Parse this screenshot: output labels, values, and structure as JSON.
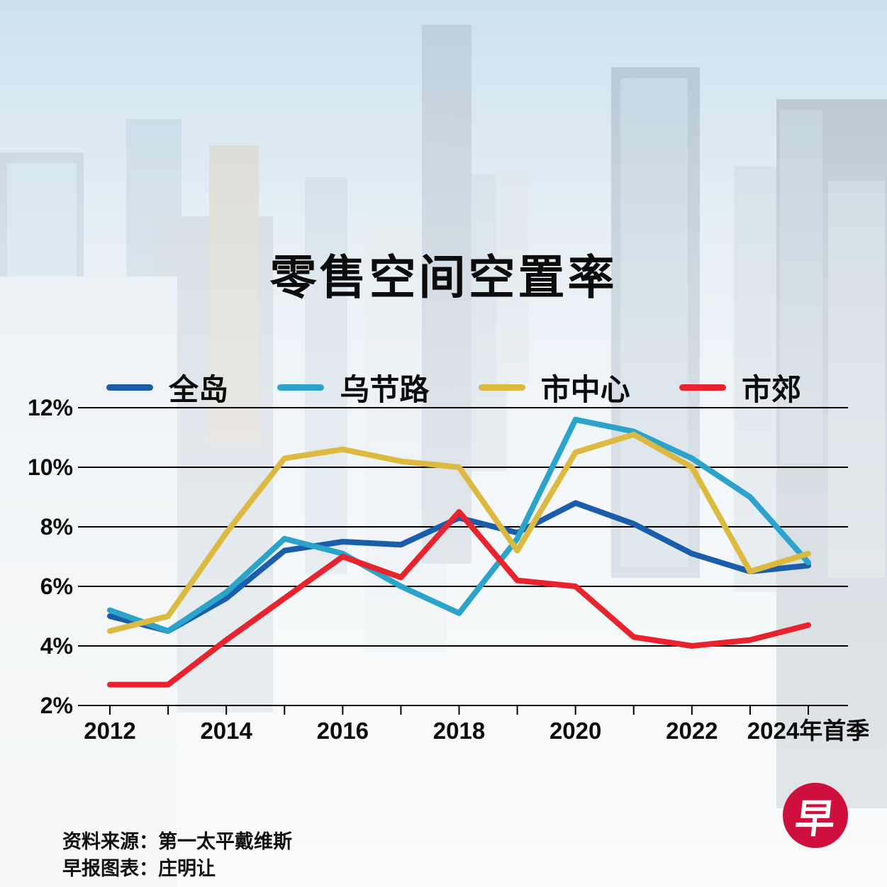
{
  "title": "零售空间空置率",
  "legend": [
    {
      "label": "全岛",
      "color": "#1a5dab"
    },
    {
      "label": "乌节路",
      "color": "#2ba3cb"
    },
    {
      "label": "市中心",
      "color": "#dcb93f"
    },
    {
      "label": "市郊",
      "color": "#e8232e"
    }
  ],
  "chart_data": {
    "type": "line",
    "x": [
      2012,
      2013,
      2014,
      2015,
      2016,
      2017,
      2018,
      2019,
      2020,
      2021,
      2022,
      2023,
      2024
    ],
    "x_tick_labels": [
      {
        "label": "2012",
        "index": 0
      },
      {
        "label": "2014",
        "index": 2
      },
      {
        "label": "2016",
        "index": 4
      },
      {
        "label": "2018",
        "index": 6
      },
      {
        "label": "2020",
        "index": 8
      },
      {
        "label": "2022",
        "index": 10
      },
      {
        "label": "2024年首季",
        "index": 12
      }
    ],
    "yticks": [
      {
        "label": "12%",
        "value": 12
      },
      {
        "label": "10%",
        "value": 10
      },
      {
        "label": "8%",
        "value": 8
      },
      {
        "label": "6%",
        "value": 6
      },
      {
        "label": "4%",
        "value": 4
      },
      {
        "label": "2%",
        "value": 2
      }
    ],
    "ylim": [
      2,
      12
    ],
    "grid": true,
    "legend_position": "top",
    "series": [
      {
        "name": "全岛",
        "color": "#1a5dab",
        "values": [
          5.0,
          4.5,
          5.6,
          7.2,
          7.5,
          7.4,
          8.3,
          7.8,
          8.8,
          8.1,
          7.1,
          6.5,
          6.7
        ]
      },
      {
        "name": "乌节路",
        "color": "#2ba3cb",
        "values": [
          5.2,
          4.5,
          5.8,
          7.6,
          7.1,
          6.0,
          5.1,
          7.6,
          11.6,
          11.2,
          10.3,
          9.0,
          6.8
        ]
      },
      {
        "name": "市中心",
        "color": "#dcb93f",
        "values": [
          4.5,
          5.0,
          7.8,
          10.3,
          10.6,
          10.2,
          10.0,
          7.2,
          10.5,
          11.1,
          10.0,
          6.5,
          7.1
        ]
      },
      {
        "name": "市郊",
        "color": "#e8232e",
        "values": [
          2.7,
          2.7,
          4.2,
          5.6,
          7.0,
          6.3,
          8.5,
          6.2,
          6.0,
          4.3,
          4.0,
          4.2,
          4.7
        ]
      }
    ]
  },
  "footer": {
    "source": "资料来源：第一太平戴维斯",
    "credit": "早报图表：庄明让"
  },
  "logo": {
    "glyph": "早",
    "color": "#cf0f3d"
  }
}
